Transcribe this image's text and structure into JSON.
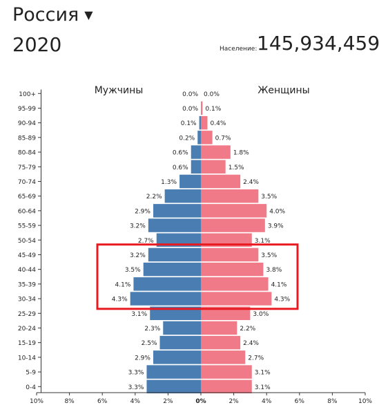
{
  "header": {
    "country": "Россия",
    "country_dropdown_icon": "caret-down-icon",
    "year": "2020",
    "population_label": "Население:",
    "population_value": "145,934,459"
  },
  "colors": {
    "male": "#4a7eb3",
    "female": "#f07a87",
    "highlight": "#e8191f",
    "axis": "#333333"
  },
  "chart_data": {
    "type": "bar",
    "orientation": "horizontal",
    "subtype": "population-pyramid",
    "categories": [
      "100+",
      "95-99",
      "90-94",
      "85-89",
      "80-84",
      "75-79",
      "70-74",
      "65-69",
      "60-64",
      "55-59",
      "50-54",
      "45-49",
      "40-44",
      "35-39",
      "30-34",
      "25-29",
      "20-24",
      "15-19",
      "10-14",
      "5-9",
      "0-4"
    ],
    "series": [
      {
        "name": "Мужчины",
        "side": "left",
        "values": [
          0.0,
          0.0,
          0.1,
          0.2,
          0.6,
          0.6,
          1.3,
          2.2,
          2.9,
          3.2,
          2.7,
          3.2,
          3.5,
          4.1,
          4.3,
          3.1,
          2.3,
          2.5,
          2.9,
          3.3,
          3.3
        ],
        "labels": [
          "0.0%",
          "0.0%",
          "0.1%",
          "0.2%",
          "0.6%",
          "0.6%",
          "1.3%",
          "2.2%",
          "2.9%",
          "3.2%",
          "2.7%",
          "3.2%",
          "3.5%",
          "4.1%",
          "4.3%",
          "3.1%",
          "2.3%",
          "2.5%",
          "2.9%",
          "3.3%",
          "3.3%"
        ]
      },
      {
        "name": "Женщины",
        "side": "right",
        "values": [
          0.0,
          0.1,
          0.4,
          0.7,
          1.8,
          1.5,
          2.4,
          3.5,
          4.0,
          3.9,
          3.1,
          3.5,
          3.8,
          4.1,
          4.3,
          3.0,
          2.2,
          2.4,
          2.7,
          3.1,
          3.1
        ],
        "labels": [
          "0.0%",
          "0.1%",
          "0.4%",
          "0.7%",
          "1.8%",
          "1.5%",
          "2.4%",
          "3.5%",
          "4.0%",
          "3.9%",
          "3.1%",
          "3.5%",
          "3.8%",
          "4.1%",
          "4.3%",
          "3.0%",
          "2.2%",
          "2.4%",
          "2.7%",
          "3.1%",
          "3.1%"
        ]
      }
    ],
    "x_ticks": [
      -10,
      -8,
      -6,
      -4,
      -2,
      0,
      2,
      4,
      6,
      8,
      10
    ],
    "x_tick_labels": [
      "10%",
      "8%",
      "6%",
      "4%",
      "2%",
      "0%",
      "2%",
      "4%",
      "6%",
      "8%",
      "10%"
    ],
    "xlim": [
      -10,
      10
    ],
    "grid": false,
    "highlight_groups": [
      "45-49",
      "40-44",
      "35-39",
      "30-34"
    ]
  }
}
